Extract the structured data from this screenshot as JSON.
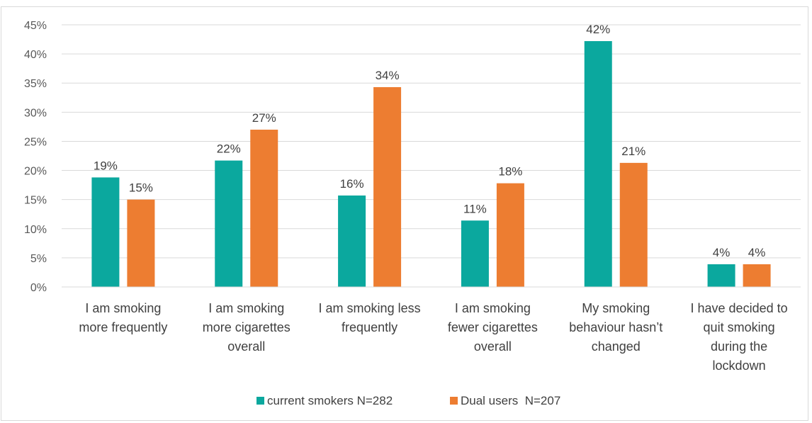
{
  "chart_data": {
    "type": "bar",
    "categories": [
      [
        "I am smoking",
        "more frequently"
      ],
      [
        "I am smoking",
        "more cigarettes",
        "overall"
      ],
      [
        "I am smoking less",
        "frequently"
      ],
      [
        "I am smoking",
        "fewer cigarettes",
        "overall"
      ],
      [
        "My smoking",
        "behaviour hasn’t",
        "changed"
      ],
      [
        "I have decided to",
        "quit smoking",
        "during the",
        "lockdown"
      ]
    ],
    "series": [
      {
        "name": "current smokers N=282",
        "color": "#0ba89e",
        "values": [
          18.8,
          21.7,
          15.7,
          11.4,
          42.2,
          3.9
        ],
        "labels": [
          "19%",
          "22%",
          "16%",
          "11%",
          "42%",
          "4%"
        ]
      },
      {
        "name": "Dual users  N=207",
        "color": "#ed7d31",
        "values": [
          15.0,
          27.0,
          34.3,
          17.8,
          21.3,
          3.9
        ],
        "labels": [
          "15%",
          "27%",
          "34%",
          "18%",
          "21%",
          "4%"
        ]
      }
    ],
    "ylim": [
      0,
      45
    ],
    "yticks": [
      "0%",
      "5%",
      "10%",
      "15%",
      "20%",
      "25%",
      "30%",
      "35%",
      "40%",
      "45%"
    ],
    "ytick_values": [
      0,
      5,
      10,
      15,
      20,
      25,
      30,
      35,
      40,
      45
    ],
    "grid": true,
    "legend": "bottom"
  }
}
